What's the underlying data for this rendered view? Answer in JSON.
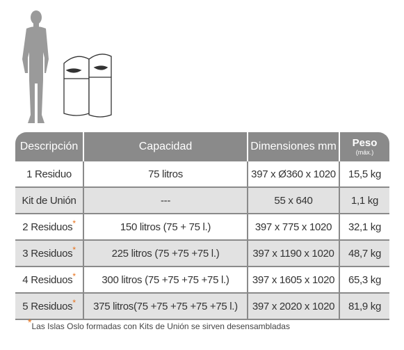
{
  "header": {
    "description": "Descripción",
    "capacity": "Capacidad",
    "dimensions": "Dimensiones mm",
    "weight": "Peso",
    "weight_sub": "(máx.)"
  },
  "rows": [
    {
      "description": "1 Residuo",
      "asterisk": "",
      "capacity": "75 litros",
      "dimensions": "397 x Ø360 x 1020",
      "weight": "15,5 kg"
    },
    {
      "description": "Kit de Unión",
      "asterisk": "",
      "capacity": "---",
      "dimensions": "55 x 640",
      "weight": "1,1 kg"
    },
    {
      "description": "2 Residuos",
      "asterisk": "*",
      "capacity": "150 litros (75 + 75 l.)",
      "dimensions": "397 x 775 x 1020",
      "weight": "32,1 kg"
    },
    {
      "description": "3 Residuos",
      "asterisk": "*",
      "capacity": "225 litros (75 +75 +75 l.)",
      "dimensions": "397 x 1190 x 1020",
      "weight": "48,7 kg"
    },
    {
      "description": "4 Residuos",
      "asterisk": "*",
      "capacity": "300 litros (75 +75 +75 +75 l.)",
      "dimensions": "397 x 1605 x 1020",
      "weight": "65,3 kg"
    },
    {
      "description": "5 Residuos",
      "asterisk": "*",
      "capacity": "375 litros(75 +75 +75 +75 +75 l.)",
      "dimensions": "397 x 2020 x 1020",
      "weight": "81,9 kg"
    }
  ],
  "footnote": {
    "asterisk": "*",
    "text": "Las Islas Oslo formadas con Kits de Unión se sirven desensambladas"
  },
  "colors": {
    "header_bg": "#8a8a8a",
    "stripe_bg": "#e2e2e2",
    "asterisk": "#e8711a",
    "silhouette": "#9a9a9a"
  },
  "icons": [
    "person-silhouette",
    "bin-illustration"
  ]
}
